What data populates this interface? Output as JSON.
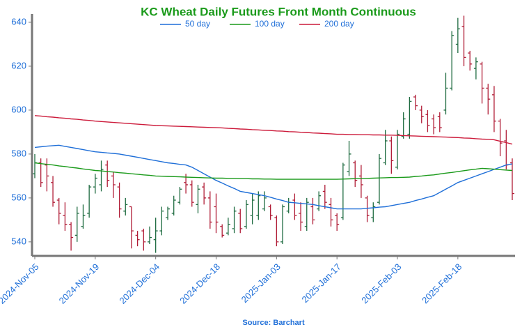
{
  "chart_data": {
    "type": "ohlc",
    "title": "KC Wheat Daily Futures Front Month Continuous",
    "source": "Source: Barchart",
    "categories": [
      "2024-Nov-05",
      null,
      null,
      null,
      null,
      null,
      null,
      null,
      null,
      null,
      "2024-Nov-19",
      null,
      null,
      null,
      null,
      null,
      null,
      null,
      null,
      null,
      "2024-Dec-04",
      null,
      null,
      null,
      null,
      null,
      null,
      null,
      null,
      null,
      "2024-Dec-18",
      null,
      null,
      null,
      null,
      null,
      null,
      null,
      null,
      null,
      "2025-Jan-03",
      null,
      null,
      null,
      null,
      null,
      null,
      null,
      null,
      null,
      "2025-Jan-17",
      null,
      null,
      null,
      null,
      null,
      null,
      null,
      null,
      null,
      "2025-Feb-03",
      null,
      null,
      null,
      null,
      null,
      null,
      null,
      null,
      null,
      "2025-Feb-18",
      null,
      null,
      null,
      null,
      null,
      null,
      null,
      null,
      null
    ],
    "ohlc": {
      "up_color": "#1e6b40",
      "down_color": "#b01c36",
      "open": [
        571,
        576,
        575,
        567,
        559,
        552,
        548,
        543,
        547,
        553,
        565,
        566,
        575,
        570,
        565,
        554,
        556,
        543,
        545,
        540,
        541,
        545,
        551,
        553,
        558,
        567,
        566,
        557,
        565,
        560,
        556,
        547,
        544,
        546,
        553,
        547,
        552,
        552,
        555,
        556,
        551,
        540,
        554,
        559,
        553,
        547,
        556,
        555,
        563,
        557,
        552,
        551,
        572,
        576,
        570,
        560,
        551,
        558,
        576,
        586,
        574,
        588,
        589,
        606,
        600,
        598,
        596,
        597,
        600,
        610,
        630,
        638,
        626,
        619,
        621,
        610,
        607,
        595,
        586,
        576
      ],
      "high": [
        580,
        578,
        578,
        570,
        560,
        558,
        549,
        556,
        557,
        566,
        571,
        577,
        577,
        572,
        567,
        560,
        556,
        545,
        546,
        547,
        551,
        556,
        556,
        561,
        565,
        571,
        568,
        566,
        567,
        563,
        562,
        548,
        551,
        556,
        555,
        559,
        562,
        563,
        563,
        557,
        552,
        557,
        560,
        562,
        558,
        560,
        560,
        563,
        566,
        560,
        553,
        576,
        586,
        577,
        575,
        561,
        558,
        580,
        591,
        588,
        591,
        599,
        606,
        607,
        602,
        600,
        598,
        599,
        617,
        636,
        642,
        643,
        627,
        624,
        622,
        612,
        611,
        596,
        591,
        578
      ],
      "low": [
        569,
        565,
        563,
        556,
        548,
        545,
        536,
        540,
        546,
        551,
        562,
        563,
        565,
        560,
        551,
        552,
        537,
        538,
        536,
        539,
        535,
        543,
        550,
        552,
        557,
        562,
        556,
        553,
        557,
        546,
        544,
        542,
        543,
        544,
        544,
        546,
        548,
        550,
        554,
        550,
        538,
        539,
        553,
        550,
        545,
        545,
        548,
        554,
        555,
        547,
        545,
        550,
        570,
        565,
        560,
        549,
        549,
        557,
        575,
        571,
        573,
        587,
        587,
        600,
        594,
        590,
        589,
        590,
        598,
        609,
        626,
        620,
        618,
        614,
        603,
        598,
        590,
        579,
        573,
        559
      ],
      "close": [
        576,
        567,
        570,
        558,
        553,
        548,
        542,
        553,
        552,
        565,
        569,
        573,
        568,
        566,
        555,
        557,
        545,
        541,
        540,
        542,
        545,
        554,
        555,
        559,
        564,
        566,
        558,
        564,
        560,
        549,
        549,
        543,
        548,
        554,
        546,
        557,
        559,
        561,
        560,
        552,
        540,
        556,
        558,
        552,
        549,
        558,
        550,
        561,
        558,
        550,
        548,
        575,
        580,
        568,
        566,
        552,
        556,
        578,
        586,
        577,
        589,
        596,
        604,
        602,
        597,
        593,
        592,
        592,
        610,
        634,
        637,
        624,
        621,
        622,
        610,
        605,
        595,
        585,
        575,
        562
      ]
    },
    "series": [
      {
        "name": "50 day",
        "color": "#1f6fd8",
        "values": [
          583,
          583.3,
          583.6,
          583.8,
          584,
          583.5,
          583,
          582.5,
          582,
          581.5,
          581,
          580.8,
          580.5,
          580.3,
          580,
          579.5,
          579,
          578.5,
          578,
          577.5,
          577,
          576.5,
          576,
          575.7,
          575.3,
          575,
          574,
          572.5,
          571,
          569.5,
          568,
          566.8,
          565.5,
          564.3,
          563,
          562.5,
          562,
          561.5,
          561,
          560.3,
          559.5,
          558.8,
          558,
          557.8,
          557.5,
          557.3,
          557,
          556.5,
          556,
          555.5,
          555,
          555,
          555,
          555,
          555,
          555.3,
          555.5,
          555.8,
          556,
          556.5,
          557,
          557.5,
          558,
          558.8,
          559.5,
          560.3,
          561,
          562.5,
          564,
          565.5,
          567,
          568,
          569,
          570,
          571,
          572,
          573,
          574,
          575,
          575.5
        ]
      },
      {
        "name": "100 day",
        "color": "#1a9a1a",
        "values": [
          576,
          575.6,
          575.3,
          575,
          574.6,
          574.3,
          573.9,
          573.6,
          573.2,
          572.9,
          572.5,
          572.3,
          572,
          571.8,
          571.5,
          571.3,
          571,
          570.8,
          570.5,
          570.3,
          570,
          569.9,
          569.8,
          569.7,
          569.6,
          569.5,
          569.4,
          569.3,
          569.2,
          569.1,
          569,
          569,
          568.9,
          568.9,
          568.8,
          568.8,
          568.7,
          568.7,
          568.6,
          568.6,
          568.5,
          568.5,
          568.5,
          568.5,
          568.5,
          568.5,
          568.5,
          568.5,
          568.5,
          568.5,
          568.5,
          568.6,
          568.7,
          568.8,
          568.8,
          568.9,
          569,
          569.1,
          569.2,
          569.3,
          569.3,
          569.4,
          569.5,
          569.8,
          570,
          570.3,
          570.5,
          570.9,
          571.3,
          571.6,
          572,
          572.4,
          572.8,
          573.1,
          573.5,
          573.3,
          573.1,
          572.9,
          572.7,
          572.5
        ]
      },
      {
        "name": "200 day",
        "color": "#cc1a3a",
        "values": [
          597.5,
          597.3,
          597,
          596.8,
          596.5,
          596.3,
          596,
          595.8,
          595.5,
          595.3,
          595,
          594.8,
          594.6,
          594.4,
          594.2,
          594,
          593.8,
          593.6,
          593.4,
          593.2,
          593,
          592.9,
          592.8,
          592.7,
          592.6,
          592.5,
          592.4,
          592.3,
          592.2,
          592.1,
          592,
          591.9,
          591.7,
          591.6,
          591.4,
          591.3,
          591.1,
          591,
          590.8,
          590.7,
          590.5,
          590.4,
          590.2,
          590.1,
          589.9,
          589.8,
          589.6,
          589.5,
          589.3,
          589.2,
          589,
          589,
          588.9,
          588.9,
          588.8,
          588.8,
          588.7,
          588.7,
          588.6,
          588.6,
          588.5,
          588.4,
          588.3,
          588.2,
          588.1,
          588,
          587.9,
          587.8,
          587.7,
          587.6,
          587.5,
          587.3,
          587.2,
          587,
          586.8,
          586.7,
          586.5,
          585.8,
          585.2,
          584.5
        ]
      }
    ],
    "ylim": [
      533.6,
      643.8
    ],
    "yticks": [
      540,
      560,
      580,
      600,
      620,
      640
    ],
    "title_color": "#1a9a1a",
    "tick_color": "#1f6fd8",
    "source_color": "#1f6fd8"
  }
}
